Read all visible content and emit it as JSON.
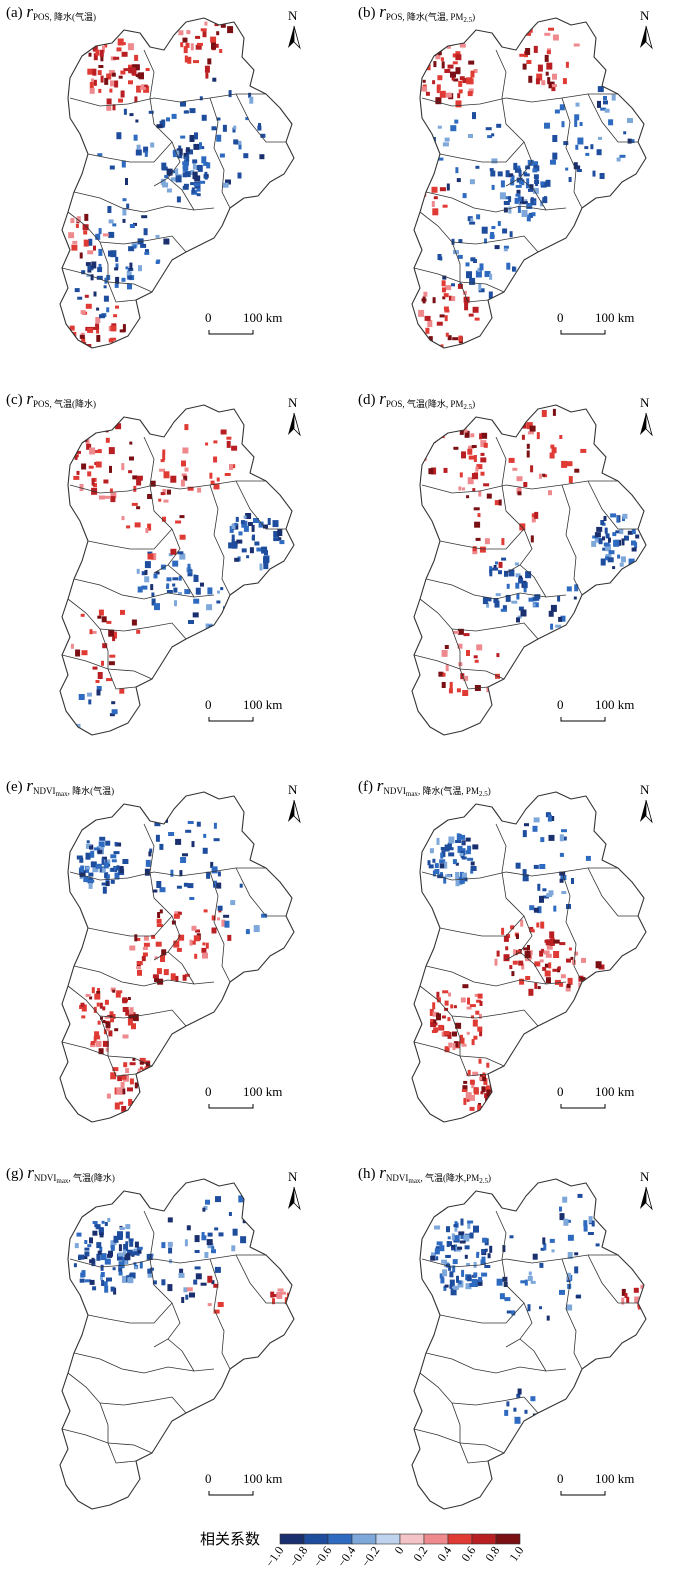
{
  "panels": [
    {
      "id": "a",
      "prefix": "(a) ",
      "main": "r",
      "sub": "POS, 降水(气温)",
      "pattern": "a"
    },
    {
      "id": "b",
      "prefix": "(b) ",
      "main": "r",
      "sub": "POS, 降水(气温, PM",
      "sub2": "2.5",
      "tail": ")",
      "pattern": "b"
    },
    {
      "id": "c",
      "prefix": "(c) ",
      "main": "r",
      "sub": "POS, 气温(降水)",
      "pattern": "c"
    },
    {
      "id": "d",
      "prefix": "(d) ",
      "main": "r",
      "sub": "POS, 气温(降水, PM",
      "sub2": "2.5",
      "tail": ")",
      "pattern": "d"
    },
    {
      "id": "e",
      "prefix": "(e) ",
      "main": "r",
      "sub": "NDVI",
      "sub2": "max",
      "tail": ", 降水(气温)",
      "pattern": "e"
    },
    {
      "id": "f",
      "prefix": "(f) ",
      "main": "r",
      "sub": "NDVI",
      "sub2": "max",
      "tail": ", 降水(气温, PM",
      "sub3": "2.5",
      "tail2": ")",
      "pattern": "f"
    },
    {
      "id": "g",
      "prefix": "(g) ",
      "main": "r",
      "sub": "NDVI",
      "sub2": "max",
      "tail": ", 气温(降水)",
      "pattern": "g"
    },
    {
      "id": "h",
      "prefix": "(h) ",
      "main": "r",
      "sub": "NDVI",
      "sub2": "max",
      "tail": ", 气温(降水,PM",
      "sub3": "2.5",
      "tail2": ")",
      "pattern": "h"
    }
  ],
  "north_label": "N",
  "scale_bar": {
    "start": "0",
    "end": "100 km"
  },
  "legend": {
    "title": "相关系数",
    "ticks": [
      "−1.0",
      "−0.8",
      "−0.6",
      "−0.4",
      "−0.2",
      "0",
      "0.2",
      "0.4",
      "0.6",
      "0.8",
      "1.0"
    ],
    "colors": [
      "#1a2f6e",
      "#1e4d9e",
      "#2e6bc0",
      "#7ea7da",
      "#bfd3ee",
      "#f4c3c8",
      "#ee8a8e",
      "#e03a35",
      "#b81e22",
      "#7a0f14"
    ]
  }
}
